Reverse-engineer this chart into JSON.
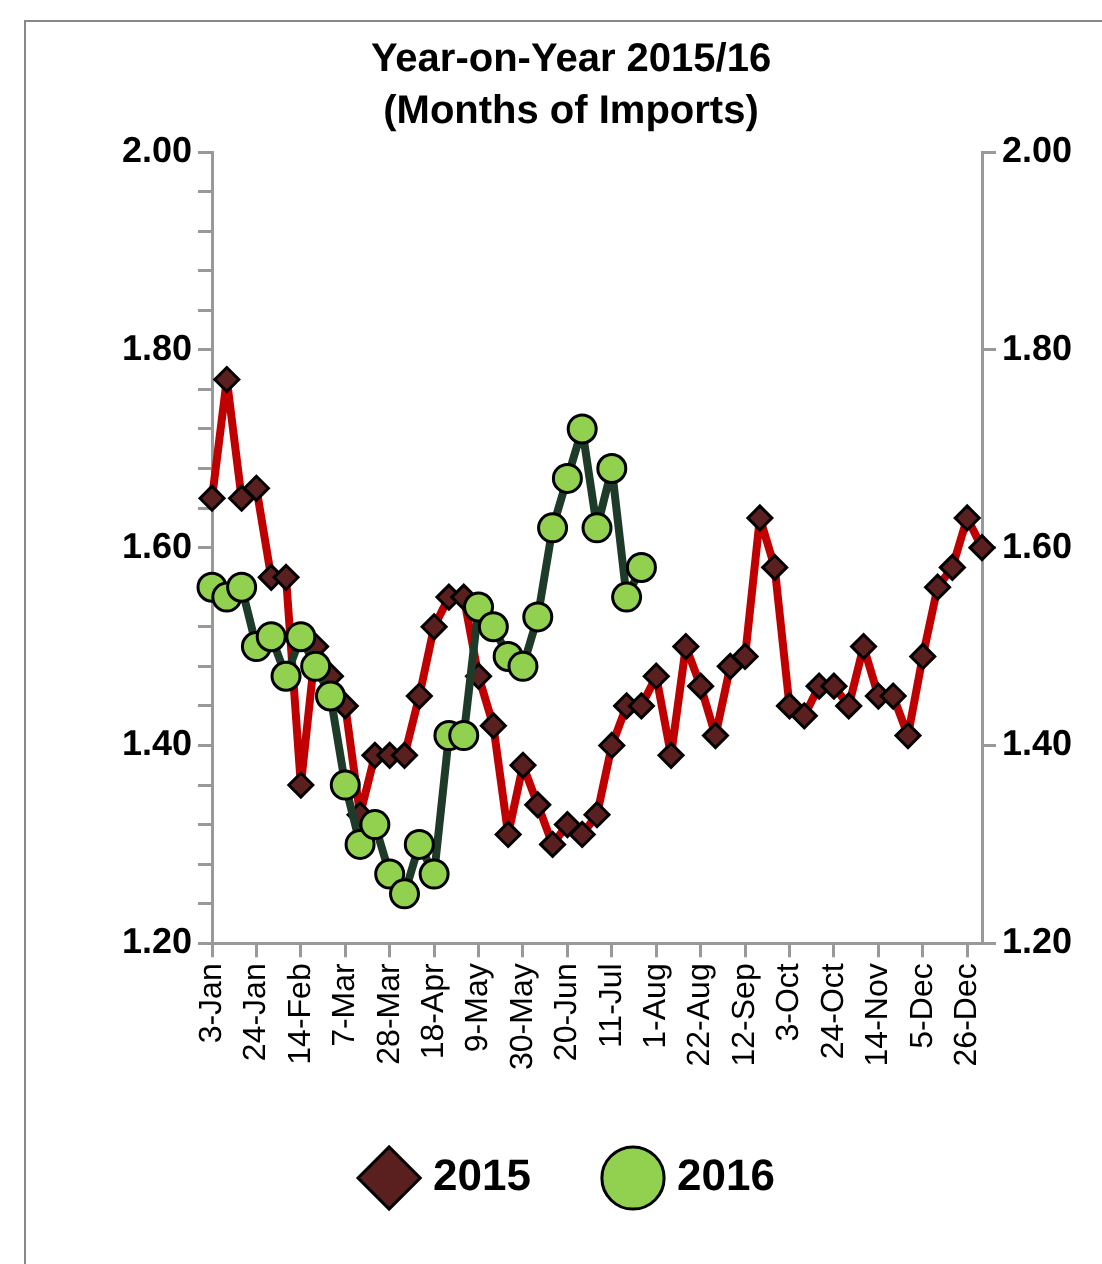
{
  "chart_data": {
    "type": "line",
    "title": "Year-on-Year 2015/16",
    "subtitle": "(Months of Imports)",
    "categories": [
      "3-Jan",
      null,
      null,
      "24-Jan",
      null,
      null,
      "14-Feb",
      null,
      null,
      "7-Mar",
      null,
      null,
      "28-Mar",
      null,
      null,
      "18-Apr",
      null,
      null,
      "9-May",
      null,
      null,
      "30-May",
      null,
      null,
      "20-Jun",
      null,
      null,
      "11-Jul",
      null,
      null,
      "1-Aug",
      null,
      null,
      "22-Aug",
      null,
      null,
      "12-Sep",
      null,
      null,
      "3-Oct",
      null,
      null,
      "24-Oct",
      null,
      null,
      "14-Nov",
      null,
      null,
      "5-Dec",
      null,
      null,
      "26-Dec",
      null
    ],
    "series": [
      {
        "name": "2015",
        "color": "#c00000",
        "marker": "diamond",
        "values": [
          1.65,
          1.77,
          1.65,
          1.66,
          1.57,
          1.57,
          1.36,
          1.5,
          1.47,
          1.44,
          1.33,
          1.39,
          1.39,
          1.39,
          1.45,
          1.52,
          1.55,
          1.55,
          1.47,
          1.42,
          1.31,
          1.38,
          1.34,
          1.3,
          1.32,
          1.31,
          1.33,
          1.4,
          1.44,
          1.44,
          1.47,
          1.39,
          1.5,
          1.46,
          1.41,
          1.48,
          1.49,
          1.63,
          1.58,
          1.44,
          1.43,
          1.46,
          1.46,
          1.44,
          1.5,
          1.45,
          1.45,
          1.41,
          1.49,
          1.56,
          1.58,
          1.63,
          1.6
        ]
      },
      {
        "name": "2016",
        "color": "#1e3b2a",
        "marker": "circle",
        "values": [
          1.56,
          1.55,
          1.56,
          1.5,
          1.51,
          1.47,
          1.51,
          1.48,
          1.45,
          1.36,
          1.3,
          1.32,
          1.27,
          1.25,
          1.3,
          1.27,
          1.41,
          1.41,
          1.54,
          1.52,
          1.49,
          1.48,
          1.53,
          1.62,
          1.67,
          1.72,
          1.62,
          1.68,
          1.55,
          1.58,
          null,
          null,
          null,
          null,
          null,
          null,
          null,
          null,
          null,
          null,
          null,
          null,
          null,
          null,
          null,
          null,
          null,
          null,
          null,
          null,
          null,
          null,
          null
        ]
      }
    ],
    "ylim": [
      1.2,
      2.0
    ],
    "yticks": [
      {
        "value": 1.2,
        "label": "1.20"
      },
      {
        "value": 1.24,
        "label": null
      },
      {
        "value": 1.28,
        "label": null
      },
      {
        "value": 1.32,
        "label": null
      },
      {
        "value": 1.36,
        "label": null
      },
      {
        "value": 1.4,
        "label": "1.40"
      },
      {
        "value": 1.44,
        "label": null
      },
      {
        "value": 1.48,
        "label": null
      },
      {
        "value": 1.52,
        "label": null
      },
      {
        "value": 1.56,
        "label": null
      },
      {
        "value": 1.6,
        "label": "1.60"
      },
      {
        "value": 1.64,
        "label": null
      },
      {
        "value": 1.68,
        "label": null
      },
      {
        "value": 1.72,
        "label": null
      },
      {
        "value": 1.76,
        "label": null
      },
      {
        "value": 1.8,
        "label": "1.80"
      },
      {
        "value": 1.84,
        "label": null
      },
      {
        "value": 1.88,
        "label": null
      },
      {
        "value": 1.92,
        "label": null
      },
      {
        "value": 1.96,
        "label": null
      },
      {
        "value": 2.0,
        "label": "2.00"
      }
    ],
    "y2lim": [
      1.2,
      2.0
    ],
    "y2ticks": [
      {
        "value": 1.2,
        "label": "1.20"
      },
      {
        "value": 1.4,
        "label": "1.40"
      },
      {
        "value": 1.6,
        "label": "1.60"
      },
      {
        "value": 1.8,
        "label": "1.80"
      },
      {
        "value": 2.0,
        "label": "2.00"
      }
    ],
    "grid": false,
    "legend": "bottom",
    "line_style": "solid"
  }
}
